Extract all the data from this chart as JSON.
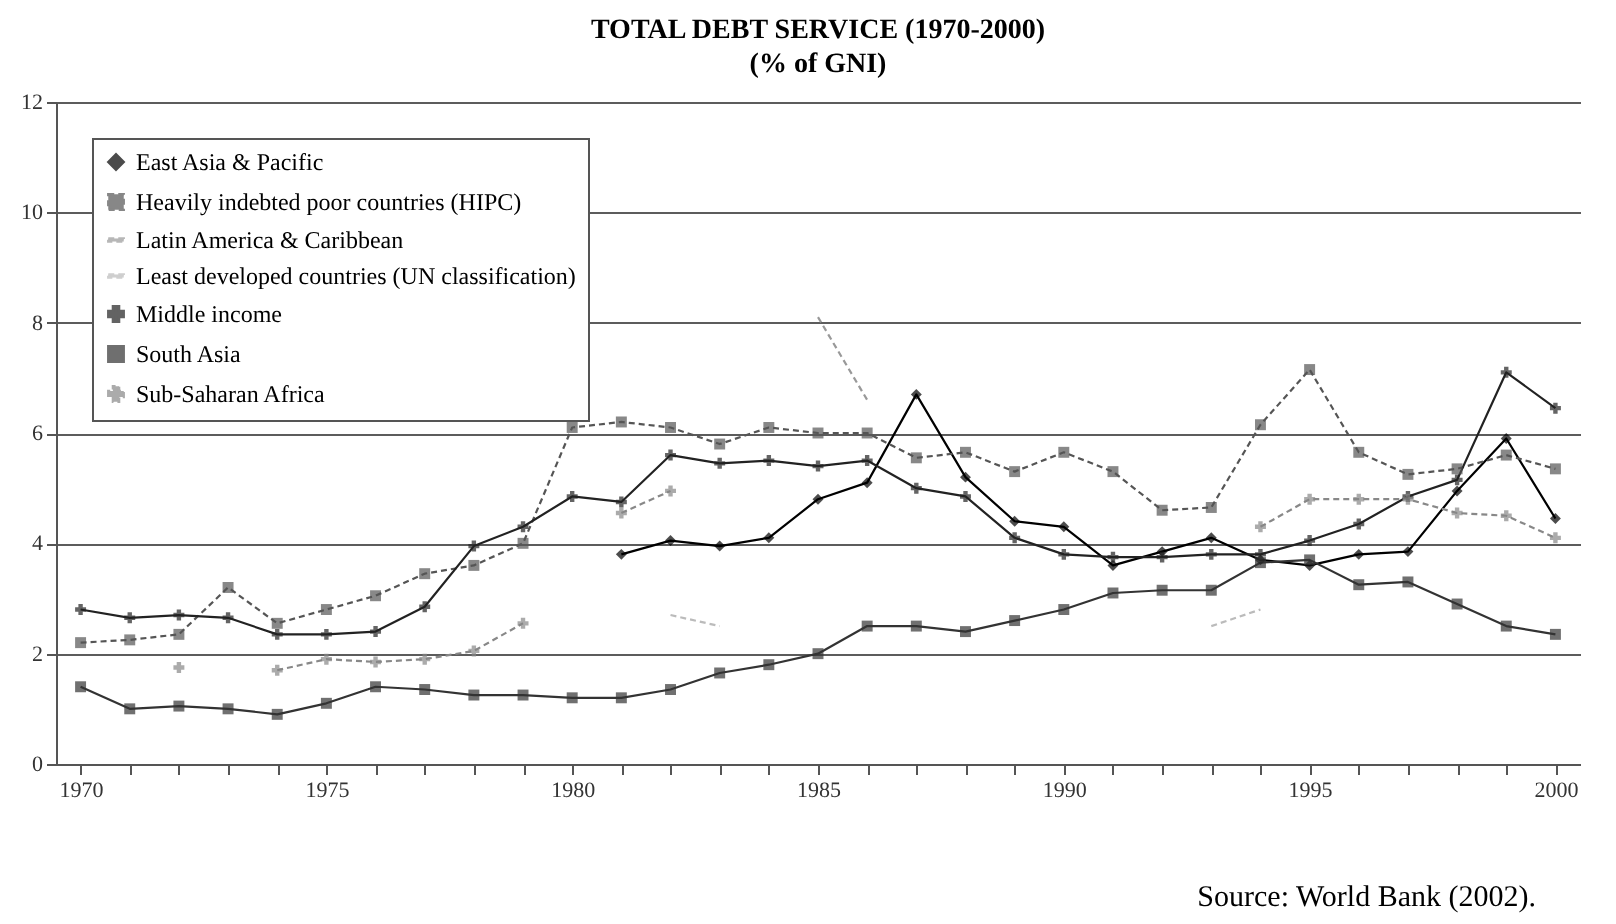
{
  "chart_data": {
    "type": "line",
    "title": "TOTAL DEBT SERVICE (1970-2000)",
    "subtitle": "(% of GNI)",
    "annotations": [
      "Source: World Bank (2002)."
    ],
    "x": [
      1970,
      1971,
      1972,
      1973,
      1974,
      1975,
      1976,
      1977,
      1978,
      1979,
      1980,
      1981,
      1982,
      1983,
      1984,
      1985,
      1986,
      1987,
      1988,
      1989,
      1990,
      1991,
      1992,
      1993,
      1994,
      1995,
      1996,
      1997,
      1998,
      1999,
      2000
    ],
    "xlim": [
      1969.5,
      2000.5
    ],
    "xticks": [
      1970,
      {
        "value": 1971,
        "label": null
      },
      {
        "value": 1972,
        "label": null
      },
      {
        "value": 1973,
        "label": null
      },
      {
        "value": 1974,
        "label": null
      },
      1975,
      {
        "value": 1976,
        "label": null
      },
      {
        "value": 1977,
        "label": null
      },
      {
        "value": 1978,
        "label": null
      },
      {
        "value": 1979,
        "label": null
      },
      1980,
      {
        "value": 1981,
        "label": null
      },
      {
        "value": 1982,
        "label": null
      },
      {
        "value": 1983,
        "label": null
      },
      {
        "value": 1984,
        "label": null
      },
      1985,
      {
        "value": 1986,
        "label": null
      },
      {
        "value": 1987,
        "label": null
      },
      {
        "value": 1988,
        "label": null
      },
      {
        "value": 1989,
        "label": null
      },
      1990,
      {
        "value": 1991,
        "label": null
      },
      {
        "value": 1992,
        "label": null
      },
      {
        "value": 1993,
        "label": null
      },
      {
        "value": 1994,
        "label": null
      },
      1995,
      {
        "value": 1996,
        "label": null
      },
      {
        "value": 1997,
        "label": null
      },
      {
        "value": 1998,
        "label": null
      },
      {
        "value": 1999,
        "label": null
      },
      2000
    ],
    "ylim": [
      0,
      12
    ],
    "yticks": [
      0,
      2,
      4,
      6,
      8,
      10,
      12
    ],
    "grid": "y",
    "legend": "top left",
    "series": [
      {
        "name": "East Asia & Pacific",
        "color": "#000000",
        "marker": "diamond",
        "line_style": "solid",
        "values": [
          null,
          null,
          null,
          null,
          null,
          null,
          null,
          null,
          null,
          null,
          null,
          3.8,
          4.05,
          3.95,
          4.1,
          4.8,
          5.1,
          6.7,
          5.2,
          4.4,
          4.3,
          3.6,
          3.85,
          4.1,
          3.7,
          3.6,
          3.8,
          3.85,
          4.95,
          5.9,
          4.45
        ]
      },
      {
        "name": "Heavily indebted poor countries (HIPC)",
        "color": "#555555",
        "marker": "square",
        "line_style": "dashed",
        "values": [
          2.2,
          2.25,
          2.35,
          3.2,
          2.55,
          2.8,
          3.05,
          3.45,
          3.6,
          4.0,
          6.1,
          6.2,
          6.1,
          5.8,
          6.1,
          6.0,
          6.0,
          5.55,
          5.65,
          5.3,
          5.65,
          5.3,
          4.6,
          4.65,
          6.15,
          7.15,
          5.65,
          5.25,
          5.35,
          5.6,
          5.35
        ]
      },
      {
        "name": "Latin America & Caribbean",
        "color": "#999999",
        "marker": "none",
        "line_style": "dashed",
        "values": [
          null,
          null,
          null,
          null,
          null,
          null,
          null,
          null,
          null,
          null,
          null,
          null,
          null,
          null,
          null,
          8.1,
          6.6,
          null,
          null,
          null,
          null,
          null,
          null,
          null,
          null,
          null,
          null,
          null,
          null,
          null,
          null
        ]
      },
      {
        "name": "Least developed countries (UN classification)",
        "color": "#bbbbbb",
        "marker": "none",
        "line_style": "dashed",
        "values": [
          null,
          null,
          null,
          null,
          null,
          null,
          null,
          null,
          null,
          null,
          null,
          null,
          2.7,
          2.5,
          null,
          null,
          null,
          null,
          null,
          null,
          null,
          null,
          null,
          2.5,
          2.8,
          null,
          null,
          null,
          null,
          null,
          null
        ]
      },
      {
        "name": "Middle income",
        "color": "#222222",
        "marker": "cross",
        "line_style": "solid",
        "values": [
          2.8,
          2.65,
          2.7,
          2.65,
          2.35,
          2.35,
          2.4,
          2.85,
          3.95,
          4.3,
          4.85,
          4.75,
          5.6,
          5.45,
          5.5,
          5.4,
          5.5,
          5.0,
          4.85,
          4.1,
          3.8,
          3.75,
          3.75,
          3.8,
          3.8,
          4.05,
          4.35,
          4.85,
          5.15,
          7.1,
          6.45
        ]
      },
      {
        "name": "South Asia",
        "color": "#333333",
        "marker": "square",
        "line_style": "solid",
        "values": [
          1.4,
          1.0,
          1.05,
          1.0,
          0.9,
          1.1,
          1.4,
          1.35,
          1.25,
          1.25,
          1.2,
          1.2,
          1.35,
          1.65,
          1.8,
          2.0,
          2.5,
          2.5,
          2.4,
          2.6,
          2.8,
          3.1,
          3.15,
          3.15,
          3.65,
          3.7,
          3.25,
          3.3,
          2.9,
          2.5,
          2.35
        ]
      },
      {
        "name": "Sub-Saharan Africa",
        "color": "#888888",
        "marker": "cross",
        "line_style": "dashed",
        "values": [
          null,
          null,
          1.75,
          null,
          1.7,
          1.9,
          1.85,
          1.9,
          2.05,
          2.55,
          null,
          4.55,
          4.95,
          null,
          null,
          null,
          null,
          null,
          null,
          null,
          null,
          null,
          null,
          null,
          4.3,
          4.8,
          4.8,
          4.8,
          4.55,
          4.5,
          4.1
        ]
      }
    ]
  }
}
